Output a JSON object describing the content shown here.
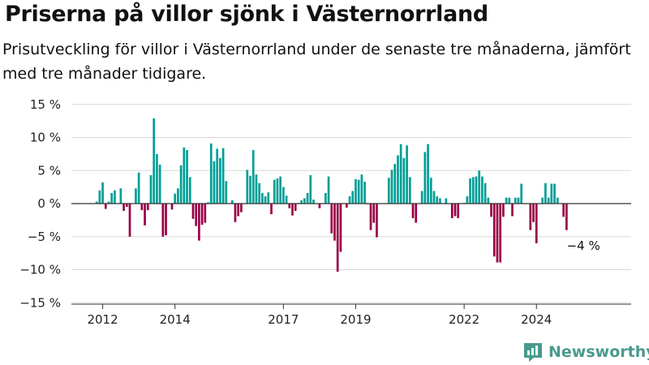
{
  "title": "Priserna på villor sjönk i Västernorrland",
  "subtitle": "Prisutveckling för villor i Västernorrland under de senaste tre månaderna, jämfört med tre månader tidigare.",
  "brand": "Newsworthy",
  "colors": {
    "positive": "#009e96",
    "negative": "#9b0047",
    "grid": "#d8d8d8",
    "axis": "#333333",
    "brand": "#4a9a8e"
  },
  "chart_data": {
    "type": "bar",
    "title": "Priserna på villor sjönk i Västernorrland",
    "xlabel": "",
    "ylabel": "",
    "ylim": [
      -15,
      15
    ],
    "yticks": [
      15,
      10,
      5,
      0,
      -5,
      -10,
      -15
    ],
    "ytick_labels": [
      "15 %",
      "10 %",
      "5 %",
      "0 %",
      "−5 %",
      "−10 %",
      "−15 %"
    ],
    "x_start": "2011-11",
    "x_unit": "month",
    "xtick_labels": [
      {
        "label": "2012",
        "month_index": 2
      },
      {
        "label": "2014",
        "month_index": 26
      },
      {
        "label": "2017",
        "month_index": 62
      },
      {
        "label": "2019",
        "month_index": 86
      },
      {
        "label": "2022",
        "month_index": 122
      },
      {
        "label": "2024",
        "month_index": 146
      }
    ],
    "annotation": {
      "text": "−4 %",
      "month_index": 154
    },
    "values": [
      0.3,
      2.0,
      3.2,
      -0.8,
      0.3,
      1.6,
      2.0,
      0.0,
      2.3,
      -1.1,
      -0.5,
      -5.0,
      0.0,
      2.3,
      4.7,
      -1.0,
      -3.3,
      -1.0,
      4.3,
      12.9,
      7.5,
      5.9,
      -5.0,
      -4.8,
      0.0,
      -0.9,
      1.5,
      2.3,
      5.8,
      8.5,
      8.1,
      4.0,
      -2.3,
      -3.4,
      -5.6,
      -3.2,
      -2.9,
      0.2,
      9.1,
      6.4,
      8.3,
      6.9,
      8.4,
      3.4,
      0.0,
      0.5,
      -2.8,
      -1.9,
      -1.3,
      0.0,
      5.1,
      4.2,
      8.1,
      4.4,
      3.1,
      1.6,
      1.1,
      1.7,
      -1.6,
      3.6,
      3.8,
      4.1,
      2.5,
      1.2,
      -0.7,
      -1.8,
      -1.1,
      0.1,
      0.5,
      0.8,
      1.6,
      4.3,
      0.6,
      0.0,
      -0.7,
      0.0,
      1.6,
      4.1,
      -4.5,
      -5.6,
      -10.3,
      -7.3,
      0.0,
      -0.6,
      1.1,
      1.9,
      3.7,
      3.6,
      4.4,
      3.3,
      -0.1,
      -4.0,
      -2.9,
      -5.1,
      0.0,
      0.0,
      0.0,
      3.9,
      5.1,
      6.0,
      7.3,
      9.0,
      6.9,
      8.8,
      4.0,
      -2.2,
      -2.9,
      0.0,
      1.9,
      7.8,
      9.0,
      3.9,
      1.9,
      1.1,
      0.8,
      0.0,
      0.8,
      0.0,
      -2.2,
      -1.9,
      -2.2,
      0.0,
      0.1,
      1.1,
      3.8,
      4.0,
      4.1,
      5.0,
      4.1,
      3.1,
      0.9,
      -2.0,
      -8.0,
      -8.9,
      -8.9,
      -2.0,
      0.9,
      0.9,
      -1.9,
      0.9,
      0.9,
      3.0,
      0.0,
      0.0,
      -4.0,
      -2.8,
      -6.0,
      0.0,
      0.9,
      3.1,
      0.9,
      3.0,
      3.0,
      0.9,
      0.0,
      -2.0,
      -4.0
    ]
  }
}
